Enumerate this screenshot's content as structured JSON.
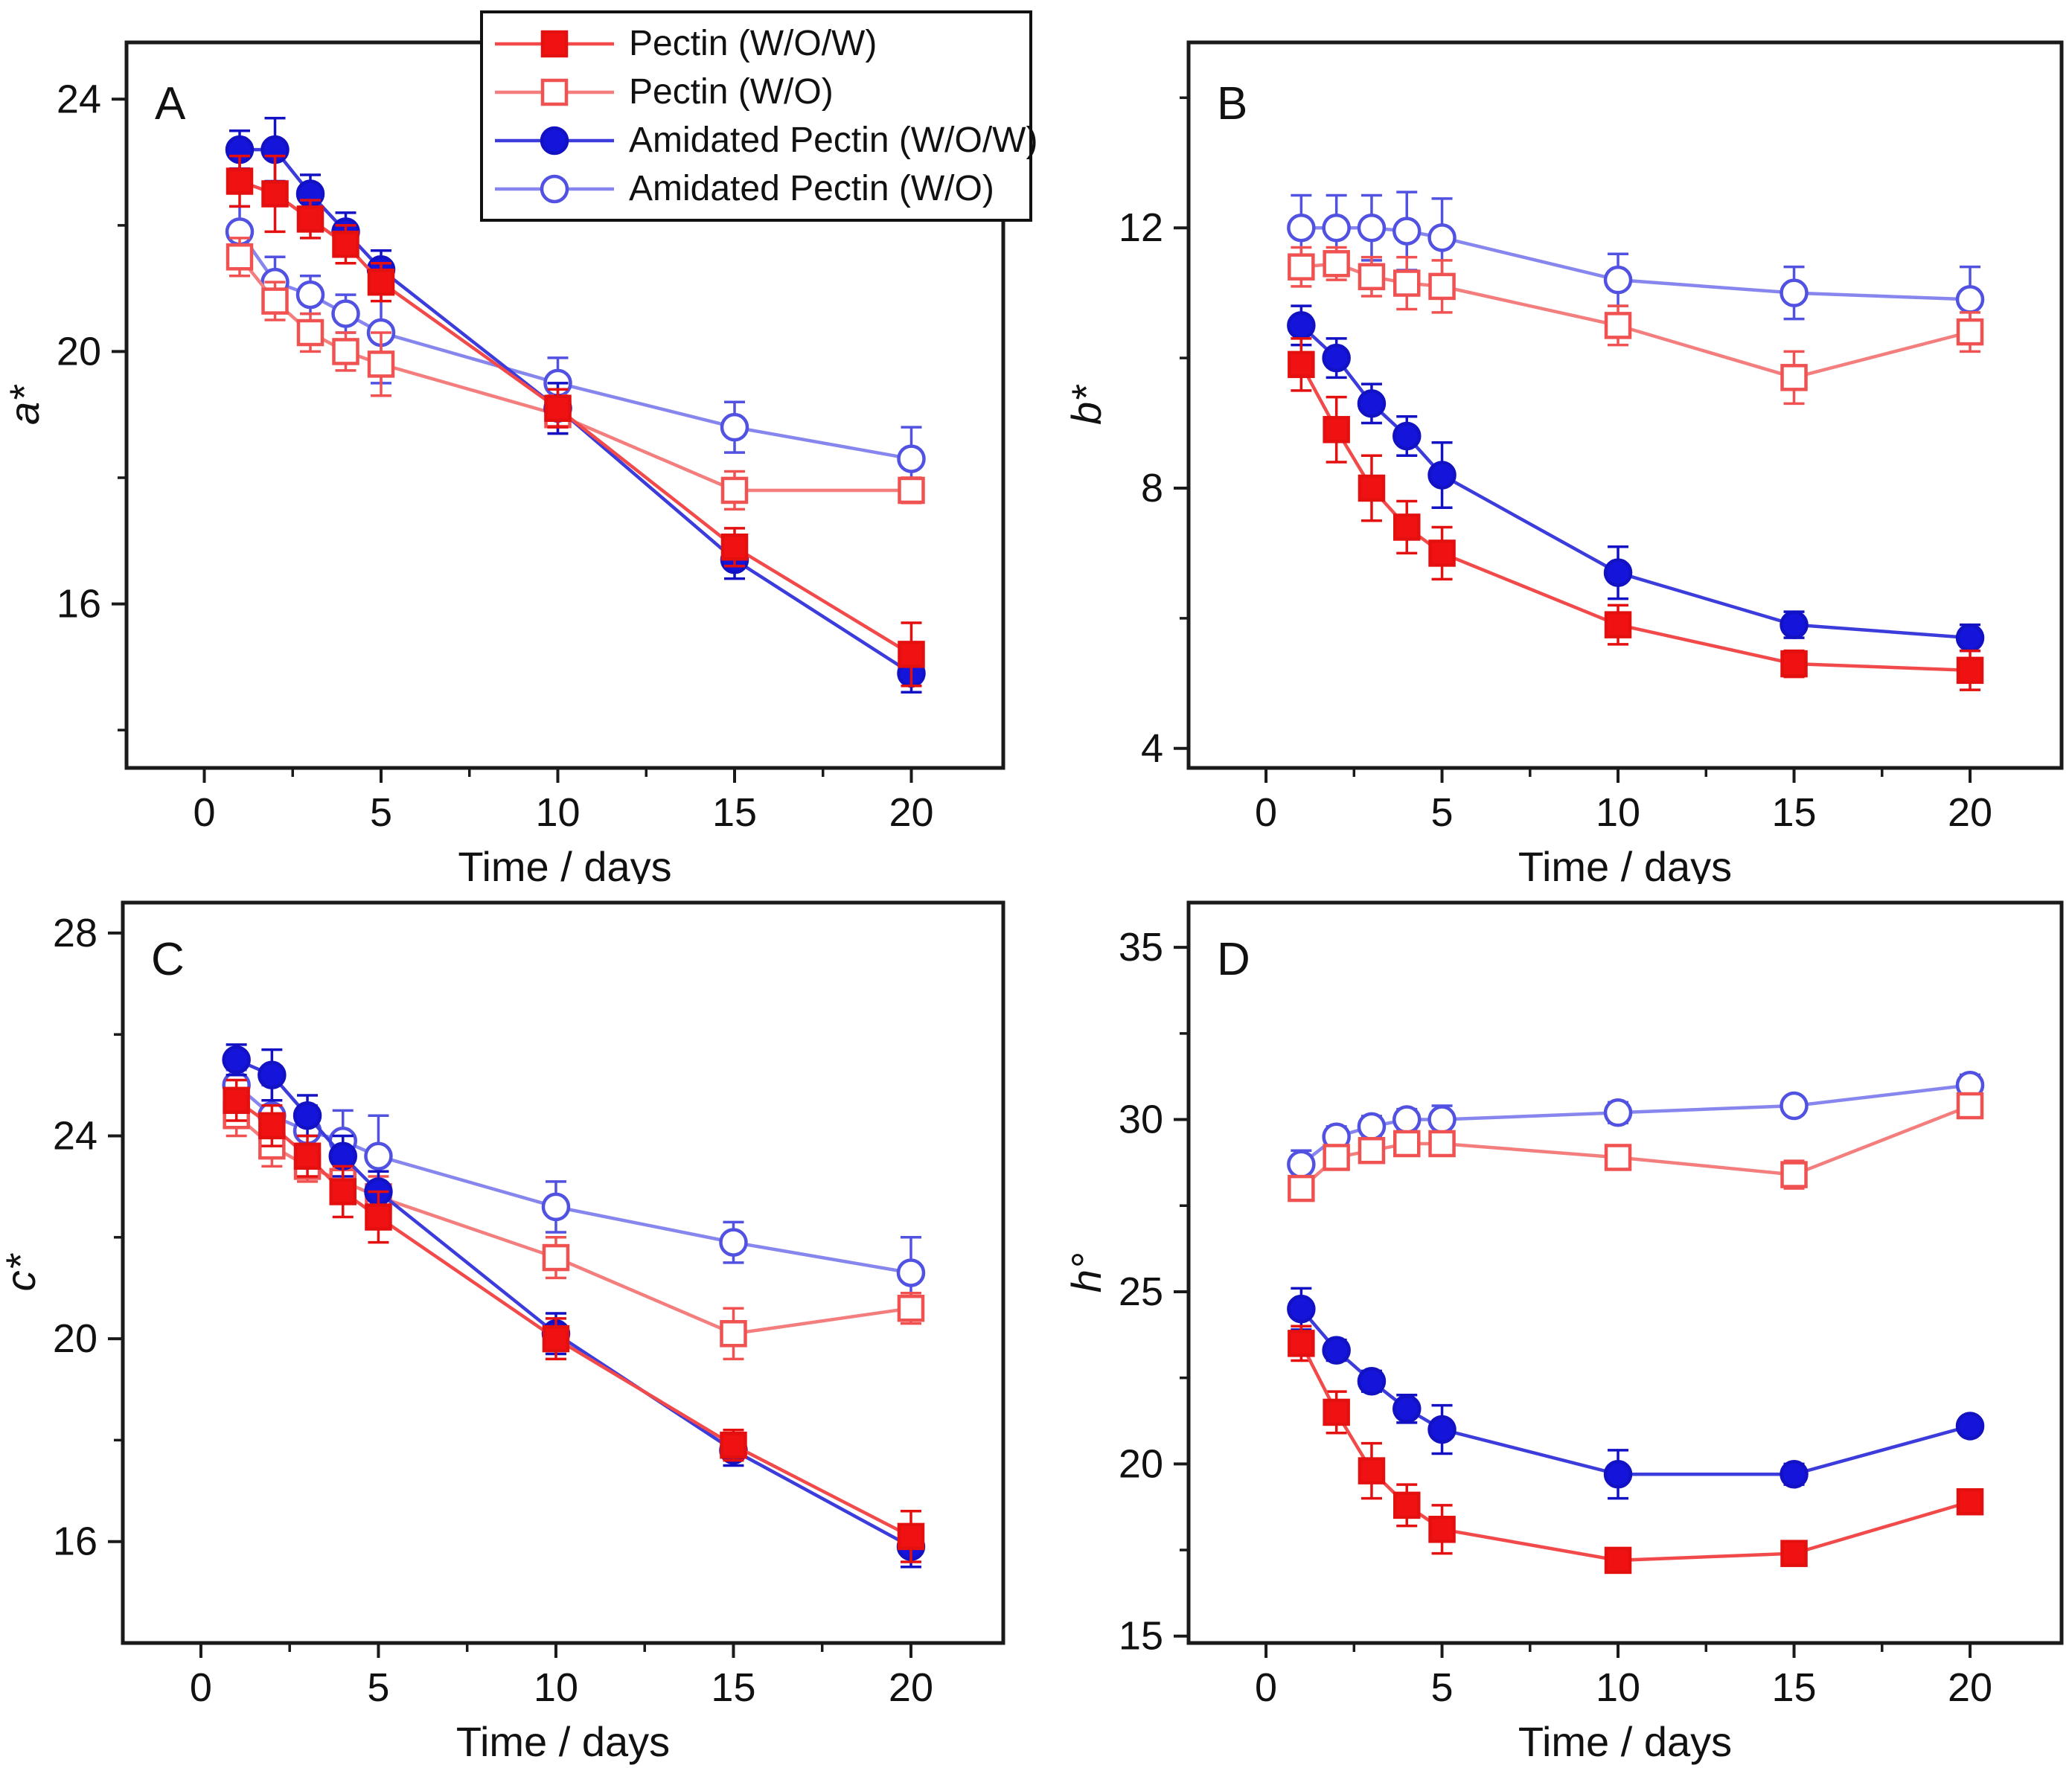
{
  "figure": {
    "background": "#ffffff",
    "axis_color": "#1a1a1a",
    "text_color": "#111111"
  },
  "legend": {
    "items": [
      {
        "label": "Pectin (W/O/W)",
        "color_key": "red_filled"
      },
      {
        "label": "Pectin (W/O)",
        "color_key": "red_open"
      },
      {
        "label": "Amidated Pectin (W/O/W)",
        "color_key": "blue_filled"
      },
      {
        "label": "Amidated Pectin (W/O)",
        "color_key": "blue_open"
      }
    ]
  },
  "style": {
    "red_filled": {
      "marker": "square",
      "fill": "#f01212",
      "stroke": "#e40f0f",
      "line": "#f24a4a"
    },
    "red_open": {
      "marker": "square",
      "fill": "#ffffff",
      "stroke": "#f05252",
      "line": "#f47e7e"
    },
    "blue_filled": {
      "marker": "circle",
      "fill": "#1414da",
      "stroke": "#1212c4",
      "line": "#3c3cdc"
    },
    "blue_open": {
      "marker": "circle",
      "fill": "#ffffff",
      "stroke": "#5252e2",
      "line": "#8686ee"
    },
    "draw_order": [
      "blue_open",
      "red_open",
      "blue_filled",
      "red_filled"
    ]
  },
  "chart_data": [
    {
      "id": "A",
      "type": "line",
      "panel_label": "A",
      "xlabel": "Time / days",
      "ylabel": "a*",
      "x": [
        1,
        2,
        3,
        4,
        5,
        10,
        15,
        20
      ],
      "xlim": [
        -2.2,
        22.6
      ],
      "xticks": [
        0,
        5,
        10,
        15,
        20
      ],
      "xminor": [
        2.5,
        7.5,
        12.5,
        17.5
      ],
      "ylim": [
        13.4,
        24.9
      ],
      "yticks": [
        16,
        20,
        24
      ],
      "yminor": [
        14,
        18,
        22
      ],
      "grid": false,
      "legend_position": "top-center-overlapping",
      "series": [
        {
          "name": "Pectin (W/O/W)",
          "color_key": "red_filled",
          "values": [
            22.7,
            22.5,
            22.1,
            21.7,
            21.1,
            19.1,
            16.9,
            15.2
          ],
          "err": [
            0.4,
            0.6,
            0.3,
            0.3,
            0.3,
            0.3,
            0.3,
            0.5
          ]
        },
        {
          "name": "Pectin (W/O)",
          "color_key": "red_open",
          "values": [
            21.5,
            20.8,
            20.3,
            20.0,
            19.8,
            19.0,
            17.8,
            17.8
          ],
          "err": [
            0.3,
            0.3,
            0.3,
            0.3,
            0.5,
            0.3,
            0.3,
            0.2
          ]
        },
        {
          "name": "Amidated Pectin (W/O/W)",
          "color_key": "blue_filled",
          "values": [
            23.2,
            23.2,
            22.5,
            21.9,
            21.3,
            19.1,
            16.7,
            14.9
          ],
          "err": [
            0.3,
            0.5,
            0.3,
            0.3,
            0.3,
            0.4,
            0.3,
            0.3
          ]
        },
        {
          "name": "Amidated Pectin (W/O)",
          "color_key": "blue_open",
          "values": [
            21.9,
            21.1,
            20.9,
            20.6,
            20.3,
            19.5,
            18.8,
            18.3
          ],
          "err": [
            0.4,
            0.4,
            0.3,
            0.3,
            0.8,
            0.4,
            0.4,
            0.5
          ]
        }
      ]
    },
    {
      "id": "B",
      "type": "line",
      "panel_label": "B",
      "xlabel": "Time / days",
      "ylabel": "b*",
      "x": [
        1,
        2,
        3,
        4,
        5,
        10,
        15,
        20
      ],
      "xlim": [
        -2.2,
        22.6
      ],
      "xticks": [
        0,
        5,
        10,
        15,
        20
      ],
      "xminor": [
        2.5,
        7.5,
        12.5,
        17.5
      ],
      "ylim": [
        3.7,
        14.85
      ],
      "yticks": [
        4,
        8,
        12
      ],
      "yminor": [
        6,
        10,
        14
      ],
      "grid": false,
      "series": [
        {
          "name": "Pectin (W/O/W)",
          "color_key": "red_filled",
          "values": [
            9.9,
            8.9,
            8.0,
            7.4,
            7.0,
            5.9,
            5.3,
            5.2
          ],
          "err": [
            0.4,
            0.5,
            0.5,
            0.4,
            0.4,
            0.3,
            0.2,
            0.3
          ]
        },
        {
          "name": "Pectin (W/O)",
          "color_key": "red_open",
          "values": [
            11.4,
            11.45,
            11.25,
            11.15,
            11.1,
            10.5,
            9.7,
            10.4
          ],
          "err": [
            0.3,
            0.25,
            0.3,
            0.4,
            0.4,
            0.3,
            0.4,
            0.3
          ]
        },
        {
          "name": "Amidated Pectin (W/O/W)",
          "color_key": "blue_filled",
          "values": [
            10.5,
            10.0,
            9.3,
            8.8,
            8.2,
            6.7,
            5.9,
            5.7
          ],
          "err": [
            0.3,
            0.3,
            0.3,
            0.3,
            0.5,
            0.4,
            0.2,
            0.2
          ]
        },
        {
          "name": "Amidated Pectin (W/O)",
          "color_key": "blue_open",
          "values": [
            12.0,
            12.0,
            12.0,
            11.95,
            11.85,
            11.2,
            11.0,
            10.9
          ],
          "err": [
            0.5,
            0.5,
            0.5,
            0.6,
            0.6,
            0.4,
            0.4,
            0.5
          ]
        }
      ]
    },
    {
      "id": "C",
      "type": "line",
      "panel_label": "C",
      "xlabel": "Time / days",
      "ylabel": "c*",
      "x": [
        1,
        2,
        3,
        4,
        5,
        10,
        15,
        20
      ],
      "xlim": [
        -2.2,
        22.6
      ],
      "xticks": [
        0,
        5,
        10,
        15,
        20
      ],
      "xminor": [
        2.5,
        7.5,
        12.5,
        17.5
      ],
      "ylim": [
        14.0,
        28.6
      ],
      "yticks": [
        16,
        20,
        24,
        28
      ],
      "yminor": [
        18,
        22,
        26
      ],
      "grid": false,
      "series": [
        {
          "name": "Pectin (W/O/W)",
          "color_key": "red_filled",
          "values": [
            24.7,
            24.2,
            23.6,
            22.9,
            22.4,
            20.0,
            17.9,
            16.1
          ],
          "err": [
            0.4,
            0.4,
            0.4,
            0.5,
            0.5,
            0.4,
            0.3,
            0.5
          ]
        },
        {
          "name": "Pectin (W/O)",
          "color_key": "red_open",
          "values": [
            24.4,
            23.8,
            23.4,
            23.1,
            22.8,
            21.6,
            20.1,
            20.6
          ],
          "err": [
            0.4,
            0.4,
            0.3,
            0.4,
            0.4,
            0.4,
            0.5,
            0.3
          ]
        },
        {
          "name": "Amidated Pectin (W/O/W)",
          "color_key": "blue_filled",
          "values": [
            25.5,
            25.2,
            24.4,
            23.6,
            22.9,
            20.1,
            17.8,
            15.9
          ],
          "err": [
            0.3,
            0.5,
            0.4,
            0.4,
            0.4,
            0.4,
            0.3,
            0.4
          ]
        },
        {
          "name": "Amidated Pectin (W/O)",
          "color_key": "blue_open",
          "values": [
            25.0,
            24.4,
            24.1,
            23.9,
            23.6,
            22.6,
            21.9,
            21.3
          ],
          "err": [
            0.3,
            0.6,
            0.5,
            0.6,
            0.8,
            0.5,
            0.4,
            0.7
          ]
        }
      ]
    },
    {
      "id": "D",
      "type": "line",
      "panel_label": "D",
      "xlabel": "Time / days",
      "ylabel": "h°",
      "x": [
        1,
        2,
        3,
        4,
        5,
        10,
        15,
        20
      ],
      "xlim": [
        -2.2,
        22.6
      ],
      "xticks": [
        0,
        5,
        10,
        15,
        20
      ],
      "xminor": [
        2.5,
        7.5,
        12.5,
        17.5
      ],
      "ylim": [
        14.8,
        36.3
      ],
      "yticks": [
        15,
        20,
        25,
        30,
        35
      ],
      "yminor": [
        17.5,
        22.5,
        27.5,
        32.5
      ],
      "grid": false,
      "series": [
        {
          "name": "Pectin (W/O/W)",
          "color_key": "red_filled",
          "values": [
            23.5,
            21.5,
            19.8,
            18.8,
            18.1,
            17.2,
            17.4,
            18.9
          ],
          "err": [
            0.5,
            0.6,
            0.8,
            0.6,
            0.7,
            0.3,
            0.3,
            0.3
          ]
        },
        {
          "name": "Pectin (W/O)",
          "color_key": "red_open",
          "values": [
            28.0,
            28.9,
            29.1,
            29.3,
            29.3,
            28.9,
            28.4,
            30.4
          ],
          "err": [
            0.3,
            0.3,
            0.3,
            0.3,
            0.3,
            0.3,
            0.4,
            0.3
          ]
        },
        {
          "name": "Amidated Pectin (W/O/W)",
          "color_key": "blue_filled",
          "values": [
            24.5,
            23.3,
            22.4,
            21.6,
            21.0,
            19.7,
            19.7,
            21.1
          ],
          "err": [
            0.6,
            0.3,
            0.3,
            0.4,
            0.7,
            0.7,
            0.3,
            0.2
          ]
        },
        {
          "name": "Amidated Pectin (W/O)",
          "color_key": "blue_open",
          "values": [
            28.7,
            29.5,
            29.8,
            30.0,
            30.0,
            30.2,
            30.4,
            31.0
          ],
          "err": [
            0.4,
            0.3,
            0.3,
            0.3,
            0.4,
            0.3,
            0.2,
            0.3
          ]
        }
      ]
    }
  ]
}
